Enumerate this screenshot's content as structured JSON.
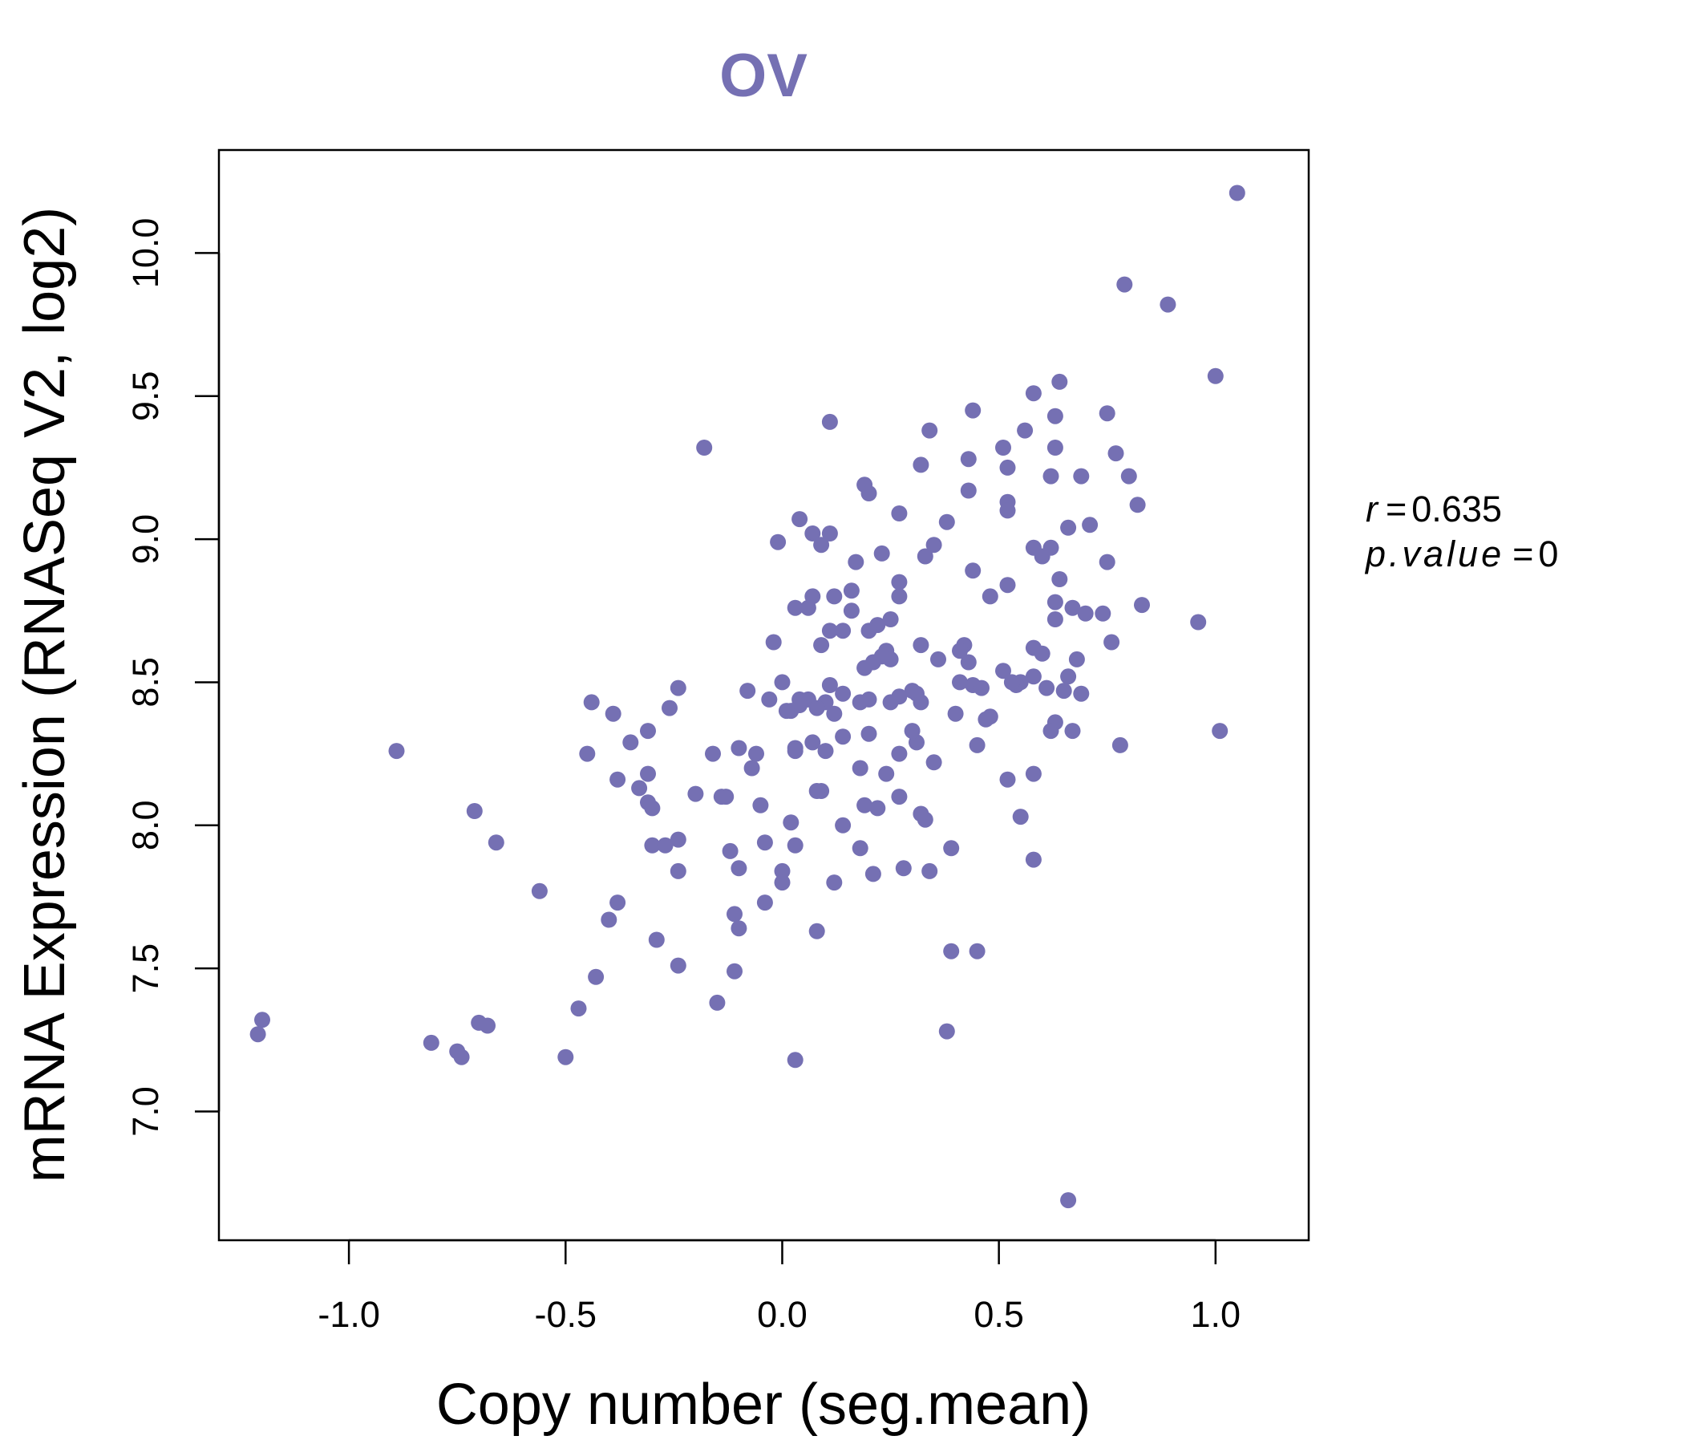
{
  "chart_data": {
    "type": "scatter",
    "title": "OV",
    "xlabel": "Copy number (seg.mean)",
    "ylabel": "mRNA Expression (RNASeq V2, log2)",
    "xlim": [
      -1.3,
      1.215
    ],
    "ylim": [
      6.55,
      10.36
    ],
    "xticks": [
      -1.0,
      -0.5,
      0.0,
      0.5,
      1.0
    ],
    "xtick_labels": [
      "-1.0",
      "-0.5",
      "0.0",
      "0.5",
      "1.0"
    ],
    "yticks": [
      7.0,
      7.5,
      8.0,
      8.5,
      9.0,
      9.5,
      10.0
    ],
    "ytick_labels": [
      "7.0",
      "7.5",
      "8.0",
      "8.5",
      "9.0",
      "9.5",
      "10.0"
    ],
    "grid": false,
    "point_color": "#7570b3",
    "title_color": "#7570b3",
    "stats": {
      "r_label": "r",
      "r_value": "0.635",
      "p_label": "p.value",
      "p_value": "0"
    },
    "series": [
      {
        "name": "OV",
        "x": [
          1.05,
          0.79,
          0.89,
          1.0,
          0.64,
          0.58,
          0.44,
          0.34,
          0.11,
          -0.18,
          0.56,
          0.63,
          0.51,
          0.75,
          0.52,
          0.43,
          0.32,
          0.63,
          0.62,
          0.69,
          0.77,
          0.8,
          0.19,
          0.2,
          0.43,
          0.52,
          0.82,
          0.52,
          0.27,
          0.38,
          0.04,
          0.71,
          0.66,
          0.07,
          0.09,
          0.11,
          -0.01,
          0.58,
          0.35,
          0.62,
          0.6,
          0.23,
          0.17,
          0.06,
          0.75,
          0.64,
          0.44,
          0.27,
          0.52,
          0.33,
          0.12,
          0.07,
          0.16,
          0.27,
          0.48,
          0.03,
          0.63,
          0.67,
          0.7,
          0.83,
          0.74,
          0.96,
          0.42,
          0.58,
          0.66,
          0.63,
          0.6,
          0.11,
          0.14,
          0.16,
          0.22,
          0.2,
          0.25,
          0.24,
          0.09,
          -0.02,
          0.32,
          0.41,
          0.76,
          0.25,
          0.19,
          0.21,
          0.23,
          0.36,
          0.43,
          0.55,
          0.58,
          0.51,
          0.41,
          0.44,
          0.54,
          0.46,
          0.68,
          0.61,
          0.11,
          -0.24,
          -0.08,
          0.0,
          0.04,
          0.06,
          0.1,
          0.14,
          0.2,
          0.3,
          0.31,
          0.27,
          0.69,
          0.65,
          0.53,
          -0.26,
          -0.44,
          -0.39,
          -0.03,
          0.04,
          0.02,
          0.01,
          0.08,
          0.12,
          0.18,
          0.25,
          0.32,
          0.4,
          0.47,
          0.48,
          0.63,
          -0.89,
          -0.31,
          -0.35,
          -0.45,
          -0.16,
          -0.1,
          -0.06,
          0.03,
          0.07,
          0.1,
          0.14,
          0.2,
          0.27,
          0.31,
          0.35,
          0.45,
          0.62,
          0.67,
          0.78,
          1.01,
          -0.38,
          -0.31,
          -0.33,
          -0.2,
          -0.13,
          -0.07,
          0.03,
          0.09,
          0.08,
          0.18,
          0.24,
          0.3,
          0.52,
          0.58,
          -0.71,
          -0.31,
          -0.3,
          -0.14,
          -0.05,
          0.02,
          0.19,
          0.22,
          0.27,
          0.32,
          0.33,
          0.55,
          -0.66,
          -0.3,
          -0.27,
          -0.24,
          -0.12,
          -0.04,
          0.0,
          0.03,
          0.14,
          0.18,
          0.21,
          0.39,
          0.58,
          -0.24,
          -0.1,
          0.0,
          0.28,
          0.34,
          0.12,
          -0.38,
          -0.11,
          -0.4,
          -0.1,
          -0.56,
          -0.04,
          0.08,
          0.39,
          0.45,
          -0.29,
          -0.24,
          -0.11,
          -0.43,
          -0.47,
          -1.2,
          -1.21,
          -0.7,
          -0.68,
          -0.81,
          -0.75,
          -0.74,
          -0.5,
          -0.15,
          0.03,
          0.38,
          0.66
        ],
        "y": [
          10.21,
          9.89,
          9.82,
          9.57,
          9.55,
          9.51,
          9.45,
          9.38,
          9.41,
          9.32,
          9.38,
          9.43,
          9.32,
          9.44,
          9.25,
          9.28,
          9.26,
          9.32,
          9.22,
          9.22,
          9.3,
          9.22,
          9.19,
          9.16,
          9.17,
          9.13,
          9.12,
          9.1,
          9.09,
          9.06,
          9.07,
          9.05,
          9.04,
          9.02,
          8.98,
          9.02,
          8.99,
          8.97,
          8.98,
          8.97,
          8.94,
          8.95,
          8.92,
          8.76,
          8.92,
          8.86,
          8.89,
          8.85,
          8.84,
          8.94,
          8.8,
          8.8,
          8.82,
          8.8,
          8.8,
          8.76,
          8.78,
          8.76,
          8.74,
          8.77,
          8.74,
          8.71,
          8.63,
          8.62,
          8.52,
          8.72,
          8.6,
          8.68,
          8.68,
          8.75,
          8.7,
          8.68,
          8.72,
          8.61,
          8.63,
          8.64,
          8.63,
          8.61,
          8.64,
          8.58,
          8.55,
          8.57,
          8.59,
          8.58,
          8.57,
          8.5,
          8.52,
          8.54,
          8.5,
          8.49,
          8.49,
          8.48,
          8.58,
          8.48,
          8.49,
          8.48,
          8.47,
          8.5,
          8.44,
          8.44,
          8.43,
          8.46,
          8.44,
          8.47,
          8.46,
          8.45,
          8.46,
          8.47,
          8.5,
          8.41,
          8.43,
          8.39,
          8.44,
          8.42,
          8.4,
          8.4,
          8.41,
          8.39,
          8.43,
          8.43,
          8.43,
          8.39,
          8.37,
          8.38,
          8.36,
          8.26,
          8.33,
          8.29,
          8.25,
          8.25,
          8.27,
          8.25,
          8.27,
          8.29,
          8.26,
          8.31,
          8.32,
          8.25,
          8.29,
          8.22,
          8.28,
          8.33,
          8.33,
          8.28,
          8.33,
          8.16,
          8.18,
          8.13,
          8.11,
          8.1,
          8.2,
          8.26,
          8.12,
          8.12,
          8.2,
          8.18,
          8.33,
          8.16,
          8.18,
          8.05,
          8.08,
          8.06,
          8.1,
          8.07,
          8.01,
          8.07,
          8.06,
          8.1,
          8.04,
          8.02,
          8.03,
          7.94,
          7.93,
          7.93,
          7.95,
          7.91,
          7.94,
          7.84,
          7.93,
          8.0,
          7.92,
          7.83,
          7.92,
          7.88,
          7.84,
          7.85,
          7.8,
          7.85,
          7.84,
          7.8,
          7.73,
          7.69,
          7.67,
          7.64,
          7.77,
          7.73,
          7.63,
          7.56,
          7.56,
          7.6,
          7.51,
          7.49,
          7.47,
          7.36,
          7.32,
          7.27,
          7.31,
          7.3,
          7.24,
          7.21,
          7.19,
          7.19,
          7.38,
          7.18,
          7.28,
          6.69
        ]
      }
    ]
  }
}
